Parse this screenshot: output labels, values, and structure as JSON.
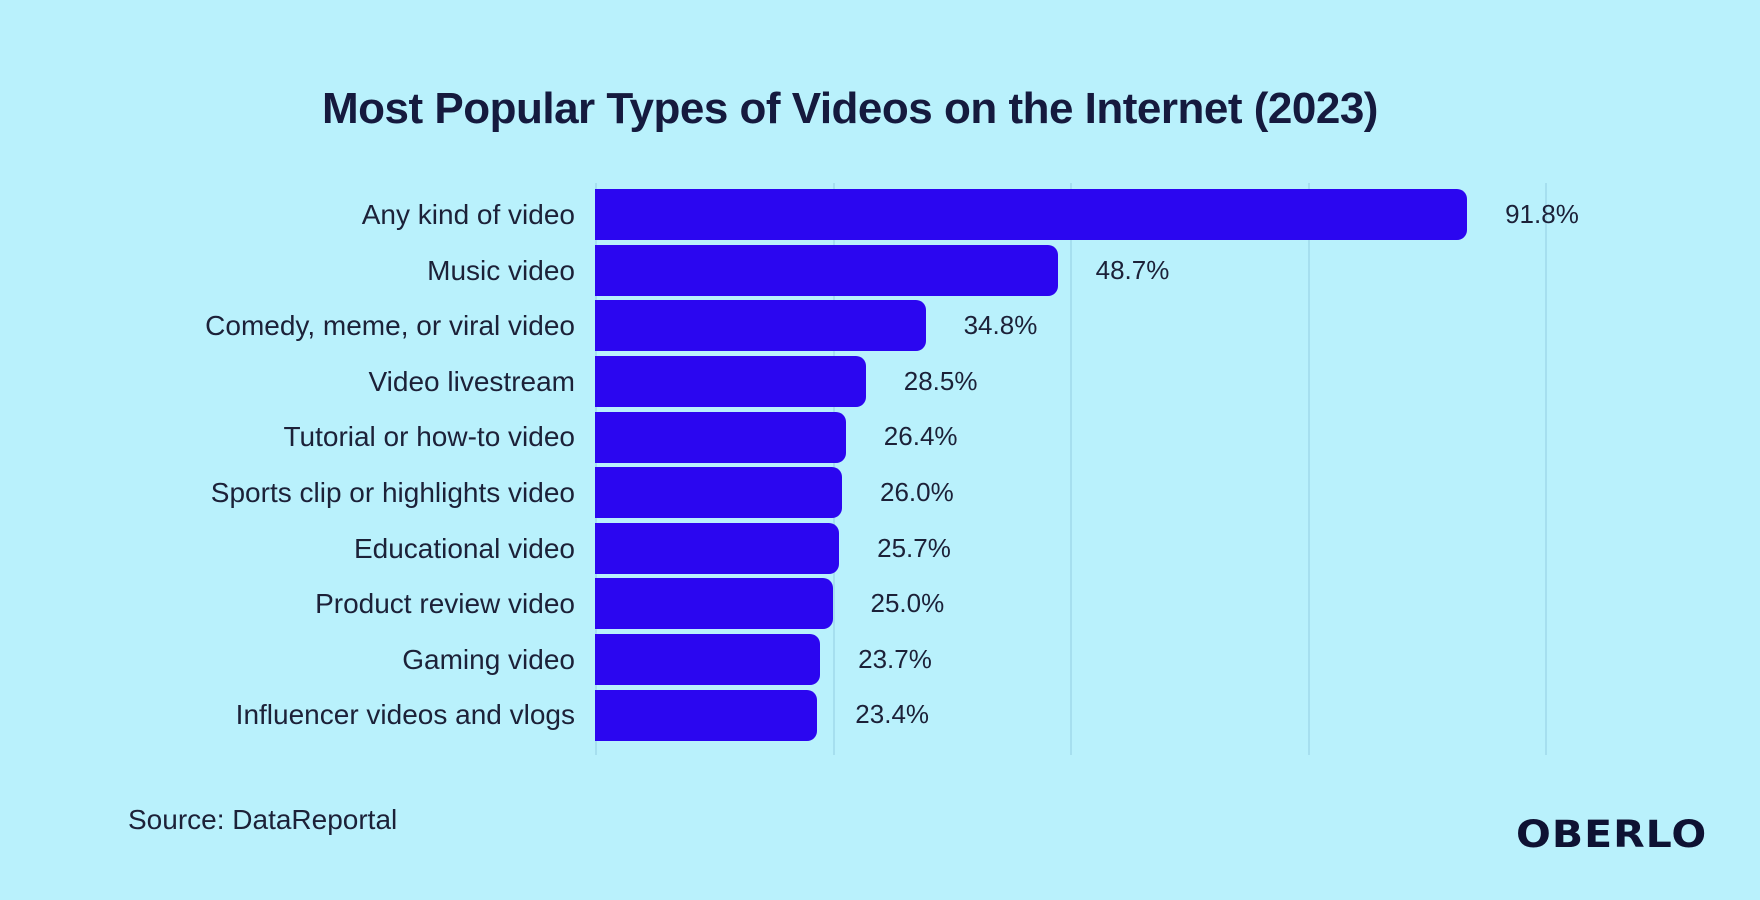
{
  "title": "Most Popular Types of Videos on the Internet (2023)",
  "chart_data": {
    "type": "bar",
    "orientation": "horizontal",
    "title": "Most Popular Types of Videos on the Internet (2023)",
    "categories": [
      "Any kind of video",
      "Music video",
      "Comedy, meme, or viral video",
      "Video livestream",
      "Tutorial or how-to video",
      "Sports clip or highlights video",
      "Educational video",
      "Product review video",
      "Gaming video",
      "Influencer videos and vlogs"
    ],
    "values": [
      91.8,
      48.7,
      34.8,
      28.5,
      26.4,
      26.0,
      25.7,
      25.0,
      23.7,
      23.4
    ],
    "value_labels": [
      "91.8%",
      "48.7%",
      "34.8%",
      "28.5%",
      "26.4%",
      "26.0%",
      "25.7%",
      "25.0%",
      "23.7%",
      "23.4%"
    ],
    "xlabel": "",
    "ylabel": "",
    "xlim": [
      0,
      100
    ],
    "gridlines": [
      0,
      25,
      50,
      75,
      100
    ],
    "grid": "vertical-only",
    "legend": "none"
  },
  "source_text": "Source: DataReportal",
  "logo_text": "OBERLO",
  "colors": {
    "background": "#B9F1FC",
    "bar": "#2B06F0",
    "title": "#151A3E",
    "text": "#1C2138",
    "gridline": "#A6DFEF",
    "logo": "#0E1233"
  }
}
